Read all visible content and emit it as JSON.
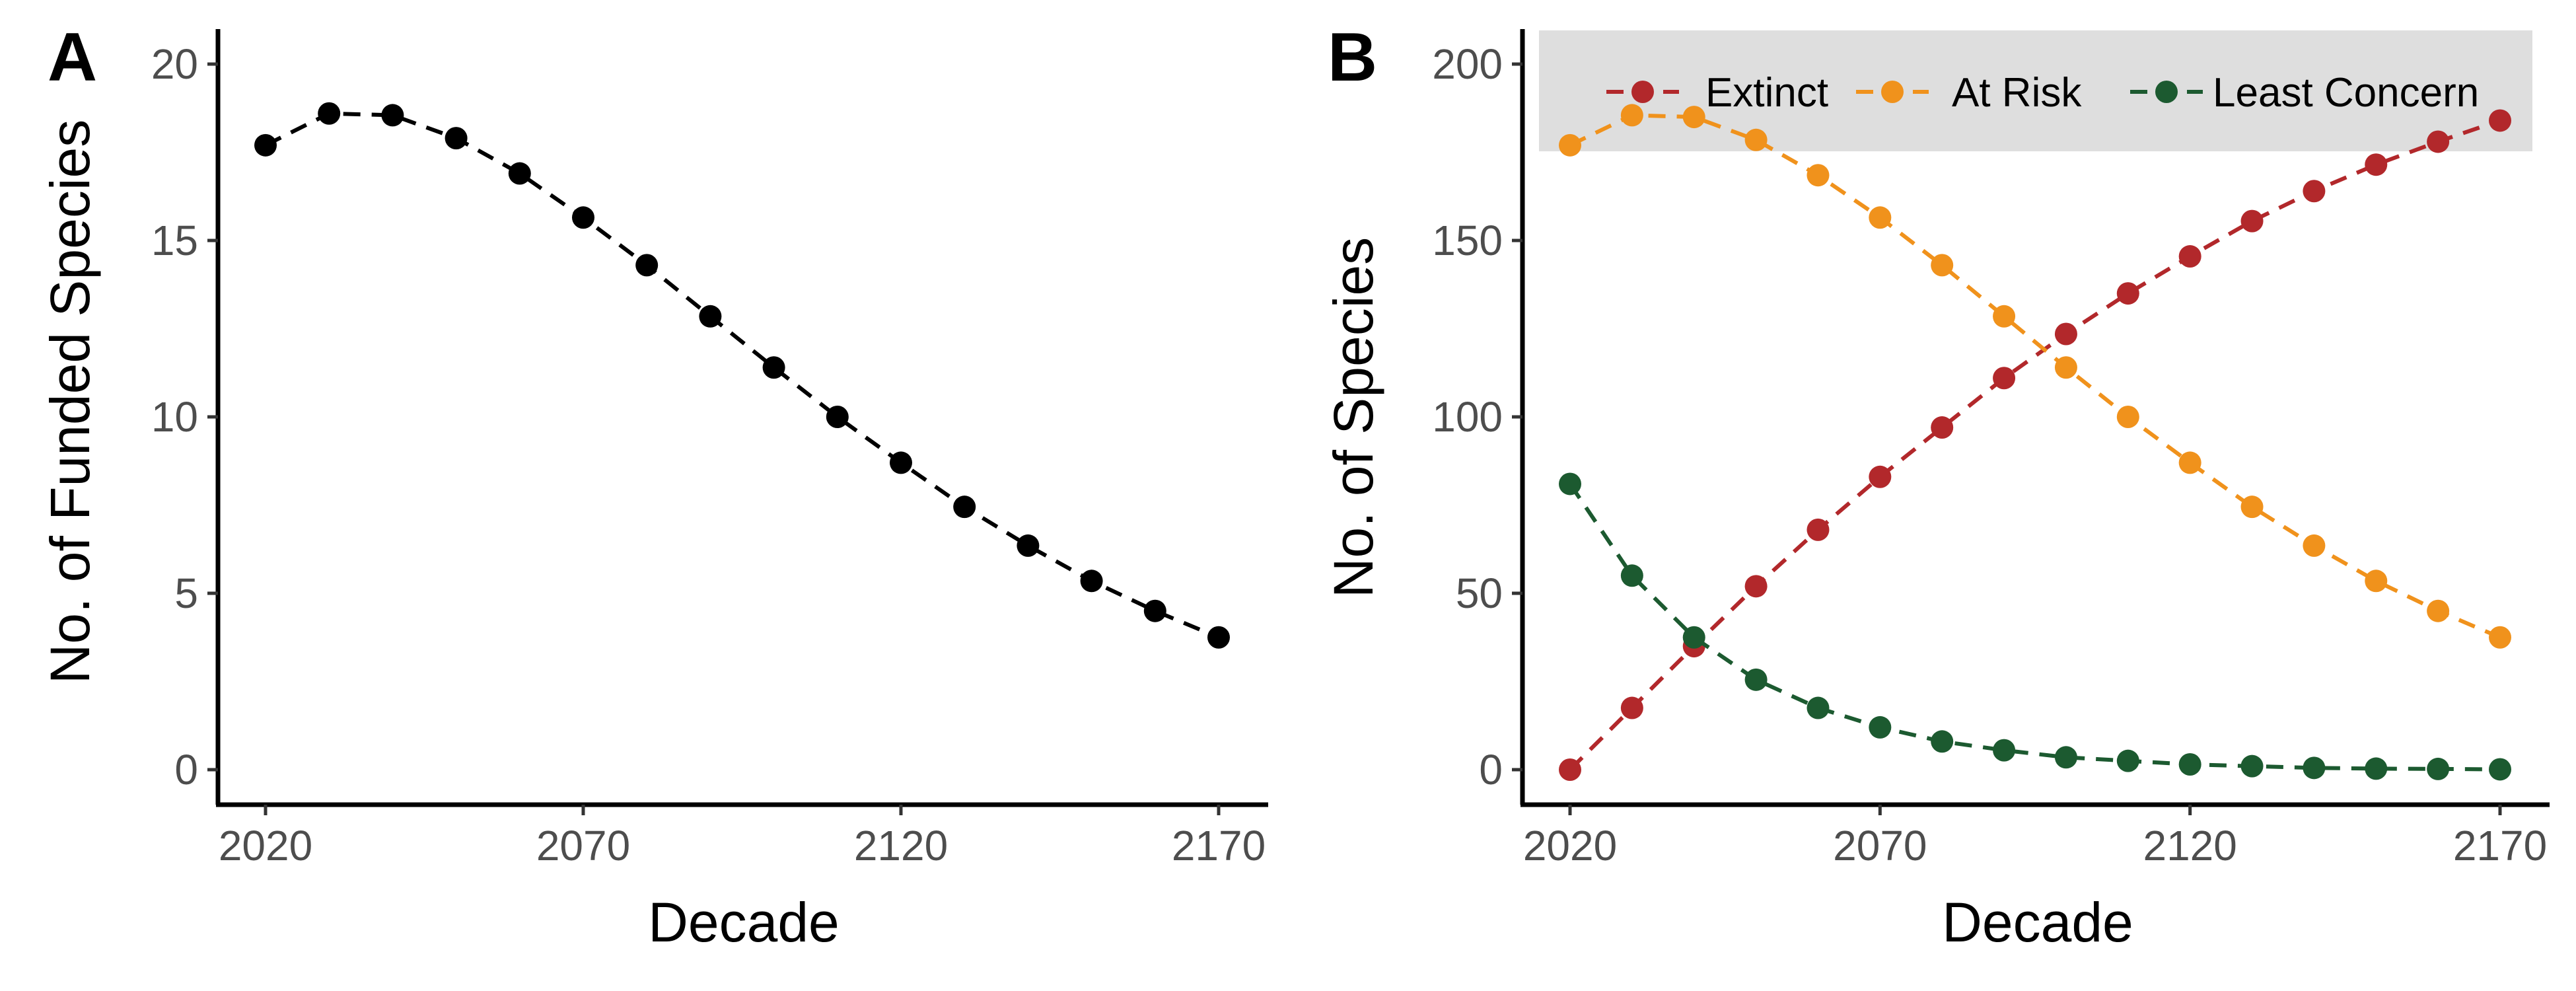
{
  "chart_data": [
    {
      "panel_label": "A",
      "type": "line",
      "xlabel": "Decade",
      "ylabel": "No. of Funded Species",
      "x": [
        2020,
        2030,
        2040,
        2050,
        2060,
        2070,
        2080,
        2090,
        2100,
        2110,
        2120,
        2130,
        2140,
        2150,
        2160,
        2170
      ],
      "x_ticks": [
        2020,
        2070,
        2120,
        2170
      ],
      "y_ticks": [
        0,
        5,
        10,
        15,
        20
      ],
      "xlim": [
        2018,
        2178
      ],
      "ylim": [
        -1,
        21
      ],
      "grid": false,
      "line_style": "dashed with points",
      "series": [
        {
          "color": "#000000",
          "values": [
            17.7,
            18.6,
            18.55,
            17.9,
            16.9,
            15.65,
            14.3,
            12.85,
            11.4,
            10.0,
            8.7,
            7.45,
            6.35,
            5.35,
            4.5,
            3.75
          ]
        }
      ]
    },
    {
      "panel_label": "B",
      "type": "line",
      "xlabel": "Decade",
      "ylabel": "No. of Species",
      "x": [
        2020,
        2030,
        2040,
        2050,
        2060,
        2070,
        2080,
        2090,
        2100,
        2110,
        2120,
        2130,
        2140,
        2150,
        2160,
        2170
      ],
      "x_ticks": [
        2020,
        2070,
        2120,
        2170
      ],
      "y_ticks": [
        0,
        50,
        100,
        150,
        200
      ],
      "xlim": [
        2018,
        2178
      ],
      "ylim": [
        -10,
        210
      ],
      "grid": false,
      "legend_position": "top (inside plot, grey band)",
      "line_style": "dashed with points",
      "series": [
        {
          "name": "Extinct",
          "color": "#B2282B",
          "values": [
            0,
            17.5,
            35,
            52,
            68,
            83,
            97,
            111,
            123.5,
            135,
            145.5,
            155.5,
            164,
            171.5,
            178,
            184
          ]
        },
        {
          "name": "At Risk",
          "color": "#F0921C",
          "values": [
            177,
            185.5,
            185,
            178.5,
            168.5,
            156.5,
            143,
            128.5,
            114,
            100,
            87,
            74.5,
            63.5,
            53.5,
            45,
            37.5
          ]
        },
        {
          "name": "Least Concern",
          "color": "#1C5A30",
          "values": [
            81,
            55,
            37.5,
            25.5,
            17.5,
            12,
            8,
            5.5,
            3.5,
            2.5,
            1.5,
            1,
            0.5,
            0.3,
            0.2,
            0.1
          ]
        }
      ]
    }
  ]
}
